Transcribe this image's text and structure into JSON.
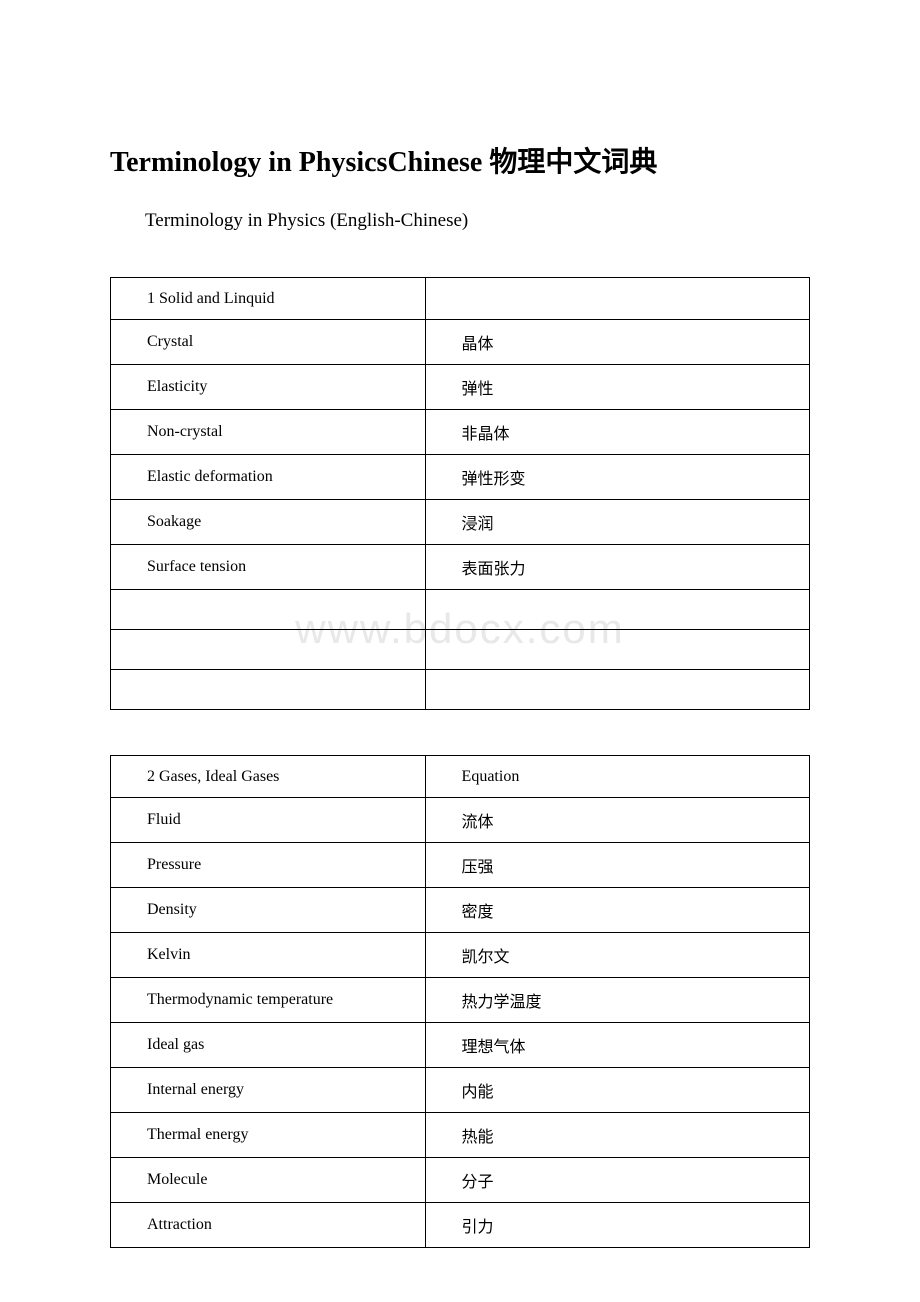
{
  "title": "Terminology in PhysicsChinese 物理中文词典",
  "subtitle": "Terminology in Physics (English-Chinese)",
  "watermark": "www.bdocx.com",
  "table1": {
    "rows": [
      {
        "left": "1 Solid and Linquid",
        "right": ""
      },
      {
        "left": "Crystal",
        "right": "晶体"
      },
      {
        "left": "Elasticity",
        "right": "弹性"
      },
      {
        "left": "Non-crystal",
        "right": "非晶体"
      },
      {
        "left": "Elastic deformation",
        "right": "弹性形变"
      },
      {
        "left": "Soakage",
        "right": "浸润"
      },
      {
        "left": "Surface tension",
        "right": "表面张力"
      },
      {
        "left": "",
        "right": ""
      },
      {
        "left": "",
        "right": ""
      },
      {
        "left": "",
        "right": ""
      }
    ]
  },
  "table2": {
    "rows": [
      {
        "left": "2 Gases, Ideal Gases",
        "right": "Equation"
      },
      {
        "left": "Fluid",
        "right": "流体"
      },
      {
        "left": "Pressure",
        "right": "压强"
      },
      {
        "left": "Density",
        "right": "密度"
      },
      {
        "left": "Kelvin",
        "right": "凯尔文"
      },
      {
        "left": "Thermodynamic temperature",
        "right": "热力学温度"
      },
      {
        "left": "Ideal gas",
        "right": "理想气体"
      },
      {
        "left": "Internal energy",
        "right": "内能"
      },
      {
        "left": "Thermal energy",
        "right": "热能"
      },
      {
        "left": "Molecule",
        "right": "分子"
      },
      {
        "left": "Attraction",
        "right": "引力"
      }
    ]
  }
}
